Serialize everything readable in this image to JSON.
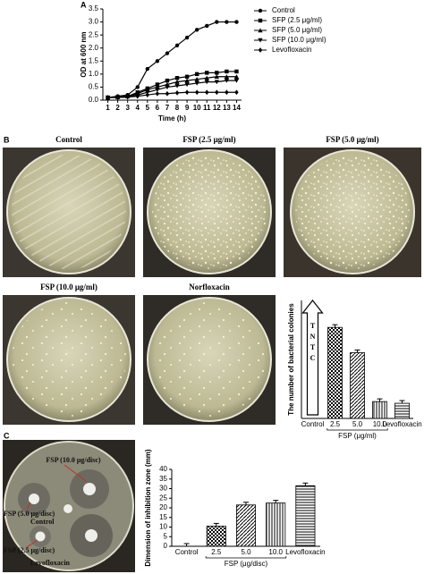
{
  "panels": [
    "A",
    "B",
    "C"
  ],
  "photos": {
    "panel_b": [
      "Control",
      "FSP (2.5 μg/ml)",
      "FSP (5.0 μg/ml)",
      "FSP (10.0 μg/ml)",
      "Norfloxacin"
    ],
    "panel_c": [
      "FSP (10.0 μg/disc)",
      "FSP (5.0 μg/disc)",
      "Control",
      "FSP (2.5 μg/disc)",
      "Levofloxacin"
    ]
  },
  "chart_data": [
    {
      "type": "line",
      "x_label": "Time (h)",
      "y_label": "OD at 600 nm",
      "x": [
        1,
        2,
        3,
        4,
        5,
        6,
        7,
        8,
        9,
        10,
        11,
        12,
        13,
        14
      ],
      "xlim": [
        0.5,
        14.5
      ],
      "xticks": [
        1,
        2,
        3,
        4,
        5,
        6,
        7,
        8,
        9,
        10,
        11,
        12,
        13,
        14
      ],
      "ylim": [
        0,
        3.5
      ],
      "yticks": [
        {
          "value": 0,
          "label": "0.0"
        },
        0.5,
        {
          "value": 1,
          "label": "1.0"
        },
        1.5,
        {
          "value": 2,
          "label": "2.0"
        },
        2.5,
        {
          "value": 3,
          "label": "3.0"
        },
        3.5
      ],
      "legend": "right",
      "series": [
        {
          "name": "Control",
          "color": "#000000",
          "marker": "circle",
          "values": [
            0.1,
            0.15,
            0.2,
            0.5,
            1.2,
            1.5,
            1.8,
            2.1,
            2.4,
            2.7,
            2.85,
            3.0,
            3.0,
            3.0
          ]
        },
        {
          "name": "SFP (2.5 μg/ml)",
          "color": "#000000",
          "marker": "square",
          "values": [
            0.1,
            0.12,
            0.15,
            0.3,
            0.45,
            0.6,
            0.75,
            0.85,
            0.9,
            1.0,
            1.05,
            1.05,
            1.1,
            1.1
          ]
        },
        {
          "name": "SFP (5.0 μg/ml)",
          "color": "#000000",
          "marker": "triangle-up",
          "values": [
            0.1,
            0.12,
            0.15,
            0.25,
            0.4,
            0.5,
            0.6,
            0.7,
            0.75,
            0.8,
            0.85,
            0.9,
            0.9,
            0.9
          ]
        },
        {
          "name": "SFP (10.0 μg/ml)",
          "color": "#000000",
          "marker": "triangle-down",
          "values": [
            0.1,
            0.1,
            0.12,
            0.2,
            0.3,
            0.4,
            0.5,
            0.55,
            0.6,
            0.65,
            0.7,
            0.7,
            0.75,
            0.75
          ]
        },
        {
          "name": "Levofloxacin",
          "color": "#000000",
          "marker": "diamond",
          "values": [
            0.1,
            0.1,
            0.12,
            0.15,
            0.2,
            0.25,
            0.25,
            0.28,
            0.3,
            0.3,
            0.3,
            0.3,
            0.3,
            0.3
          ]
        }
      ]
    },
    {
      "type": "bar",
      "x_label": "FSP (μg/ml)",
      "y_label": "The number of bacterial colonies",
      "categories": [
        "Control",
        "2.5",
        "5.0",
        "10.0",
        "Levofloxacin"
      ],
      "values": [
        null,
        540,
        390,
        100,
        90
      ],
      "color": "#000000",
      "ylim": [
        0,
        700
      ],
      "annotation": "TNTC"
    },
    {
      "type": "bar",
      "x_label": "FSP (μg/disc)",
      "y_label": "Dimension of inhibition zone (mm)",
      "categories": [
        "Control",
        "2.5",
        "5.0",
        "10.0",
        "Levofloxacin"
      ],
      "values": [
        0,
        10.5,
        21.5,
        22.5,
        31.5
      ],
      "color": "#000000",
      "ylim": [
        0,
        40
      ],
      "yticks": [
        0,
        5,
        10,
        15,
        20,
        25,
        30,
        35,
        40
      ]
    }
  ]
}
